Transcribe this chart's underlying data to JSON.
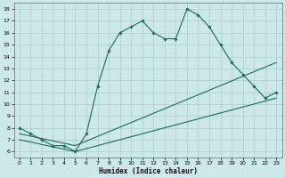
{
  "xlabel": "Humidex (Indice chaleur)",
  "bg_color": "#cce8e8",
  "grid_color": "#aacccc",
  "line_color": "#1a6b5a",
  "xlim": [
    -0.5,
    23.5
  ],
  "ylim": [
    5.5,
    18.5
  ],
  "yticks": [
    6,
    7,
    8,
    9,
    10,
    11,
    12,
    13,
    14,
    15,
    16,
    17,
    18
  ],
  "xticks": [
    0,
    1,
    2,
    3,
    4,
    5,
    6,
    7,
    8,
    9,
    10,
    11,
    12,
    13,
    14,
    15,
    16,
    17,
    18,
    19,
    20,
    21,
    22,
    23
  ],
  "curve1_x": [
    0,
    1,
    2,
    3,
    4,
    5,
    6,
    7,
    8,
    9,
    10,
    11,
    12,
    13,
    14,
    15,
    16,
    17,
    18,
    19,
    20,
    21,
    22,
    23
  ],
  "curve1_y": [
    8.0,
    7.5,
    7.0,
    6.5,
    6.5,
    6.0,
    7.5,
    11.5,
    14.5,
    16.0,
    16.5,
    17.0,
    16.0,
    15.5,
    15.5,
    18.0,
    17.5,
    16.5,
    15.0,
    13.5,
    12.5,
    11.5,
    10.5,
    11.0
  ],
  "line2_x": [
    0,
    5,
    23
  ],
  "line2_y": [
    7.5,
    6.5,
    13.5
  ],
  "line3_x": [
    0,
    5,
    23
  ],
  "line3_y": [
    7.0,
    6.0,
    10.5
  ]
}
